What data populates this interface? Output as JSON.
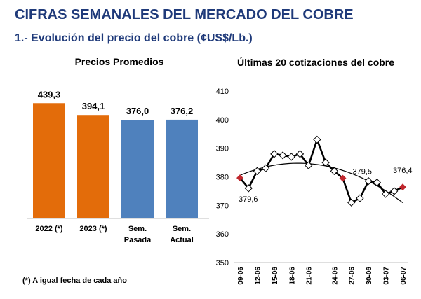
{
  "header": {
    "title": "CIFRAS SEMANALES DEL MERCADO DEL COBRE",
    "subtitle": "1.- Evolución del precio del cobre (¢US$/Lb.)"
  },
  "footnote": "(*) A igual fecha de cada año",
  "colors": {
    "title": "#1f3a7a",
    "orange": "#e36c0a",
    "blue": "#4f81bd",
    "marker_red": "#c0272d"
  },
  "chart_data": [
    {
      "type": "bar",
      "title": "Precios Promedios",
      "categories": [
        "2022 (*)",
        "2023 (*)",
        "Sem. Pasada",
        "Sem. Actual"
      ],
      "values": [
        439.3,
        394.1,
        376.0,
        376.2
      ],
      "value_labels": [
        "439,3",
        "394,1",
        "376,0",
        "376,2"
      ],
      "bar_colors": [
        "#e36c0a",
        "#e36c0a",
        "#4f81bd",
        "#4f81bd"
      ],
      "ylim": [
        0,
        480
      ]
    },
    {
      "type": "line",
      "title": "Últimas 20 cotizaciones del cobre",
      "x_tick_labels": [
        "09-06",
        "12-06",
        "15-06",
        "18-06",
        "21-06",
        "24-06",
        "27-06",
        "30-06",
        "03-07",
        "06-07"
      ],
      "series": [
        {
          "values": [
            379.6,
            376.0,
            382.0,
            383.0,
            388.0,
            387.5,
            387.0,
            388.0,
            384.0,
            393.0,
            385.0,
            382.0,
            379.5,
            371.0,
            372.5,
            378.5,
            378.0,
            374.0,
            375.0,
            376.4
          ]
        }
      ],
      "trendline": "polynomial",
      "annotations": [
        {
          "index": 0,
          "label": "379,6"
        },
        {
          "index": 12,
          "label": "379,5"
        },
        {
          "index": 19,
          "label": "376,4"
        }
      ],
      "y_ticks": [
        350,
        360,
        370,
        380,
        390,
        400,
        410
      ],
      "ylim": [
        350,
        410
      ]
    }
  ]
}
